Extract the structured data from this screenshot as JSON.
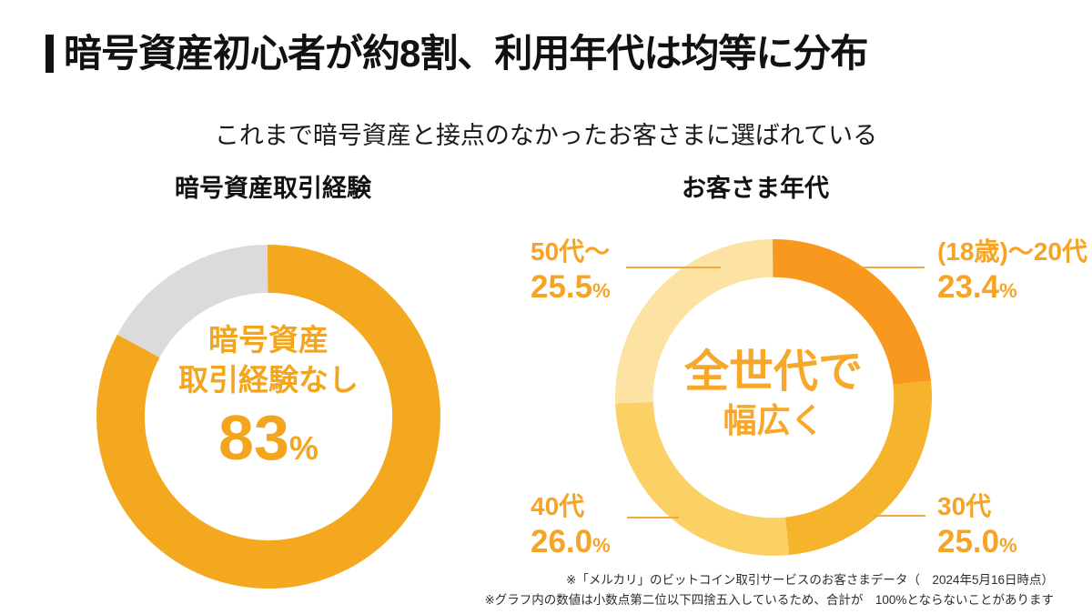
{
  "page": {
    "title": "暗号資産初心者が約8割、利用年代は均等に分布",
    "subtitle": "これまで暗号資産と接点のなかったお客さまに選ばれている",
    "percent_sign": "%",
    "footnotes": [
      "※「メルカリ」のビットコイン取引サービスのお客さまデータ（　2024年5月16日時点）",
      "※グラフ内の数値は小数点第二位以下四捨五入しているため、合計が　100%とならないことがあります"
    ]
  },
  "colors": {
    "title": "#111111",
    "accent_label": "#F6A426",
    "left_donut_orange": "#F4A81F",
    "left_donut_gray": "#DBDBDB",
    "age_18_20": "#F8981E",
    "age_30": "#F6B42C",
    "age_40": "#FBD065",
    "age_50": "#FCE3A4"
  },
  "chart_data": [
    {
      "type": "pie",
      "variant": "donut",
      "title": "暗号資産取引経験",
      "start_angle": "top",
      "direction": "clockwise",
      "center_label_lines": [
        "暗号資産",
        "取引経験なし"
      ],
      "center_value": "83",
      "segments": [
        {
          "label": "暗号資産取引経験なし",
          "value": 83,
          "value_display": "83",
          "color": "#F4A81F"
        },
        {
          "label": "",
          "value": 17,
          "value_display": "17",
          "color": "#DBDBDB"
        }
      ]
    },
    {
      "type": "pie",
      "variant": "donut",
      "title": "お客さま年代",
      "start_angle": "top",
      "direction": "clockwise",
      "center_label_lines": [
        "全世代で",
        "幅広く"
      ],
      "segments": [
        {
          "label": "(18歳)〜20代",
          "value": 23.4,
          "value_display": "23.4",
          "color": "#F8981E"
        },
        {
          "label": "30代",
          "value": 25.0,
          "value_display": "25.0",
          "color": "#F6B42C"
        },
        {
          "label": "40代",
          "value": 26.0,
          "value_display": "26.0",
          "color": "#FBD065"
        },
        {
          "label": "50代〜",
          "value": 25.5,
          "value_display": "25.5",
          "color": "#FCE3A4"
        }
      ]
    }
  ]
}
